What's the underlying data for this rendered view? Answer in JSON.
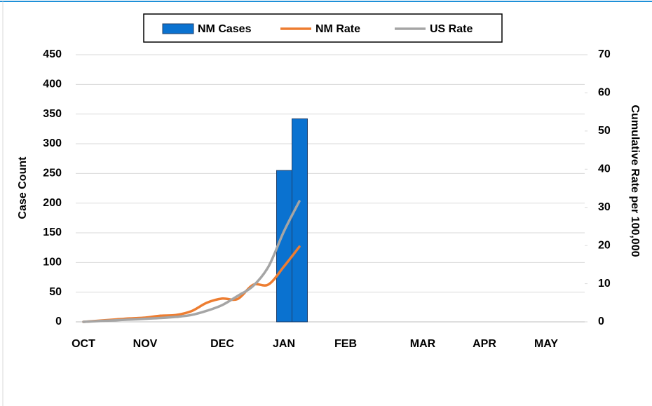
{
  "chart_data": {
    "type": "combo",
    "categories": [
      "OCT",
      null,
      null,
      null,
      "NOV",
      null,
      null,
      null,
      null,
      "DEC",
      null,
      null,
      null,
      "JAN",
      null,
      null,
      null,
      "FEB",
      null,
      null,
      null,
      null,
      "MAR",
      null,
      null,
      null,
      "APR",
      null,
      null,
      null,
      "MAY",
      null,
      null
    ],
    "series": [
      {
        "name": "NM Cases",
        "type": "bar",
        "color": "#0a72d0",
        "axis": "y",
        "values": [
          null,
          null,
          null,
          null,
          null,
          null,
          null,
          null,
          null,
          null,
          null,
          null,
          null,
          255,
          342,
          null,
          null,
          null,
          null,
          null,
          null,
          null,
          null,
          null,
          null,
          null,
          null,
          null,
          null,
          null,
          null,
          null,
          null
        ]
      },
      {
        "name": "NM Rate",
        "type": "line",
        "color": "#ed7d31",
        "axis": "y2",
        "values": [
          0,
          0.3,
          0.6,
          0.9,
          1.1,
          1.6,
          1.8,
          2.8,
          5.0,
          6.1,
          6.0,
          9.7,
          9.8,
          14.5,
          19.7,
          null,
          null,
          null,
          null,
          null,
          null,
          null,
          null,
          null,
          null,
          null,
          null,
          null,
          null,
          null,
          null,
          null,
          null
        ]
      },
      {
        "name": "US Rate",
        "type": "line",
        "color": "#a5a5a5",
        "axis": "y2",
        "values": [
          0,
          0.2,
          0.4,
          0.6,
          0.8,
          1.0,
          1.3,
          1.8,
          2.9,
          4.4,
          6.8,
          9.4,
          14.5,
          23.7,
          31.6,
          null,
          null,
          null,
          null,
          null,
          null,
          null,
          null,
          null,
          null,
          null,
          null,
          null,
          null,
          null,
          null,
          null,
          null
        ]
      }
    ],
    "ylabel": "Case Count",
    "y2label": "Cumulative Rate per 100,000",
    "ylim": [
      0,
      450
    ],
    "yticks": [
      0,
      50,
      100,
      150,
      200,
      250,
      300,
      350,
      400,
      450
    ],
    "y2lim": [
      0,
      70
    ],
    "y2ticks": [
      0,
      10,
      20,
      30,
      40,
      50,
      60,
      70
    ],
    "grid": true,
    "legend": "top"
  }
}
